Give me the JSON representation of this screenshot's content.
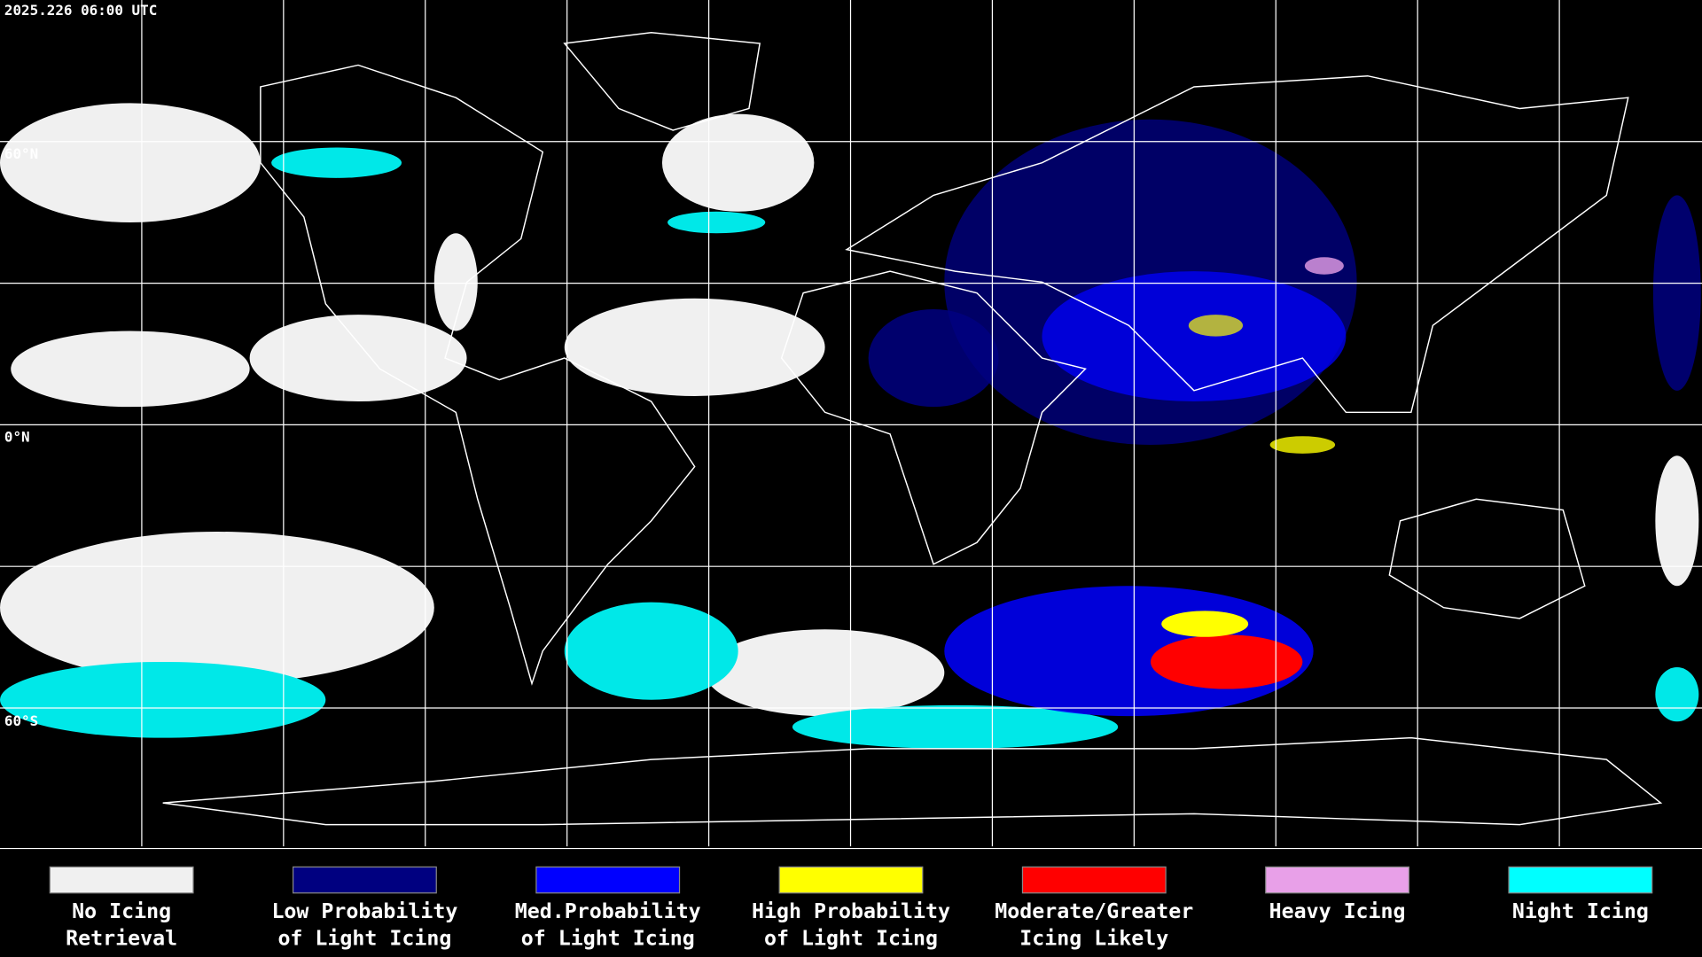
{
  "header": {
    "timestamp": "2025.226 06:00 UTC"
  },
  "map": {
    "latitude_labels": [
      "60°N",
      "0°N",
      "60°S"
    ]
  },
  "legend": {
    "items": [
      {
        "lines": [
          "No Icing",
          "Retrieval"
        ],
        "color": "#f0f0f0"
      },
      {
        "lines": [
          "Low Probability",
          "of Light Icing"
        ],
        "color": "#000080"
      },
      {
        "lines": [
          "Med.Probability",
          "of Light Icing"
        ],
        "color": "#0000ff"
      },
      {
        "lines": [
          "High Probability",
          "of Light Icing"
        ],
        "color": "#ffff00"
      },
      {
        "lines": [
          "Moderate/Greater",
          "Icing Likely"
        ],
        "color": "#ff0000"
      },
      {
        "lines": [
          "Heavy Icing"
        ],
        "color": "#e8a0e8"
      },
      {
        "lines": [
          "Night Icing"
        ],
        "color": "#00ffff"
      }
    ]
  }
}
